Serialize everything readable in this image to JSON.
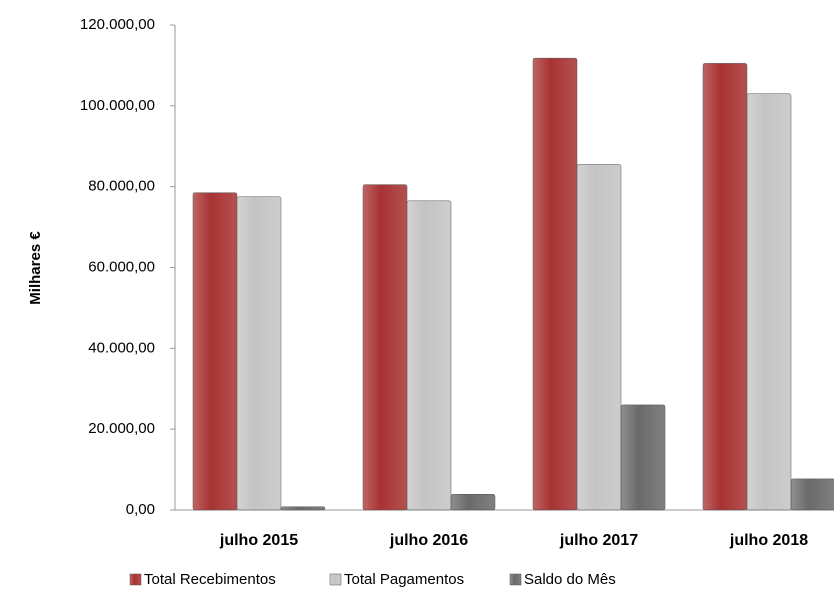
{
  "chart_data": {
    "type": "bar",
    "y_label": "Milhares €",
    "categories": [
      "julho 2015",
      "julho 2016",
      "julho 2017",
      "julho 2018"
    ],
    "series": [
      {
        "name": "Total Recebimentos",
        "color": "#a83232",
        "values": [
          78500,
          80500,
          111800,
          110500
        ]
      },
      {
        "name": "Total Pagamentos",
        "color": "#c4c4c4",
        "values": [
          77500,
          76500,
          85500,
          103000
        ]
      },
      {
        "name": "Saldo do Mês",
        "color": "#6a6a6a",
        "values": [
          800,
          3900,
          26000,
          7700
        ]
      }
    ],
    "ylim": [
      0,
      120000
    ],
    "yticks": [
      {
        "value": 0,
        "label": "0,00"
      },
      {
        "value": 20000,
        "label": "20.000,00"
      },
      {
        "value": 40000,
        "label": "40.000,00"
      },
      {
        "value": 60000,
        "label": "60.000,00"
      },
      {
        "value": 80000,
        "label": "80.000,00"
      },
      {
        "value": 100000,
        "label": "100.000,00"
      },
      {
        "value": 120000,
        "label": "120.000,00"
      }
    ],
    "grid": false,
    "legend": "bottom"
  }
}
